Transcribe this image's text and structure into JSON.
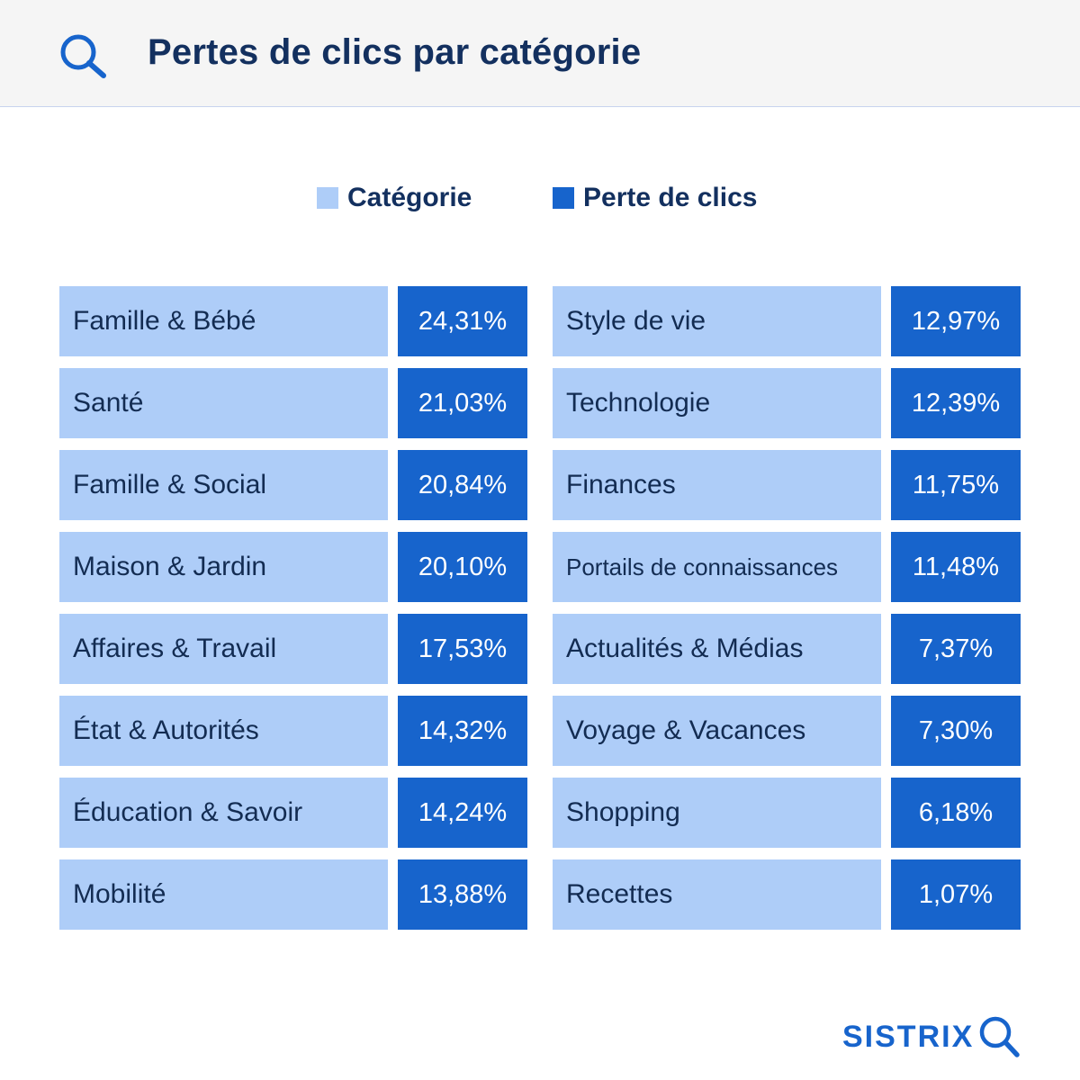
{
  "header": {
    "title": "Pertes de clics par catégorie",
    "icon": "search-icon"
  },
  "legend": [
    {
      "label": "Catégorie",
      "color": "#aecdf8"
    },
    {
      "label": "Perte de clics",
      "color": "#1764cc"
    }
  ],
  "chart_data": {
    "type": "table",
    "columns": [
      "Catégorie",
      "Perte de clics"
    ],
    "rows": [
      {
        "category": "Famille & Bébé",
        "value": "24,31%"
      },
      {
        "category": "Santé",
        "value": "21,03%"
      },
      {
        "category": "Famille & Social",
        "value": "20,84%"
      },
      {
        "category": "Maison & Jardin",
        "value": "20,10%"
      },
      {
        "category": "Affaires & Travail",
        "value": "17,53%"
      },
      {
        "category": "État & Autorités",
        "value": "14,32%"
      },
      {
        "category": "Éducation & Savoir",
        "value": "14,24%"
      },
      {
        "category": "Mobilité",
        "value": "13,88%"
      },
      {
        "category": "Style de vie",
        "value": "12,97%"
      },
      {
        "category": "Technologie",
        "value": "12,39%"
      },
      {
        "category": "Finances",
        "value": "11,75%"
      },
      {
        "category": "Portails de connaissances",
        "value": "11,48%"
      },
      {
        "category": "Actualités & Médias",
        "value": "7,37%"
      },
      {
        "category": "Voyage & Vacances",
        "value": "7,30%"
      },
      {
        "category": "Shopping",
        "value": "6,18%"
      },
      {
        "category": "Recettes",
        "value": "1,07%"
      }
    ]
  },
  "brand": {
    "name": "SISTRIX",
    "icon": "search-icon",
    "color": "#1764cc"
  }
}
